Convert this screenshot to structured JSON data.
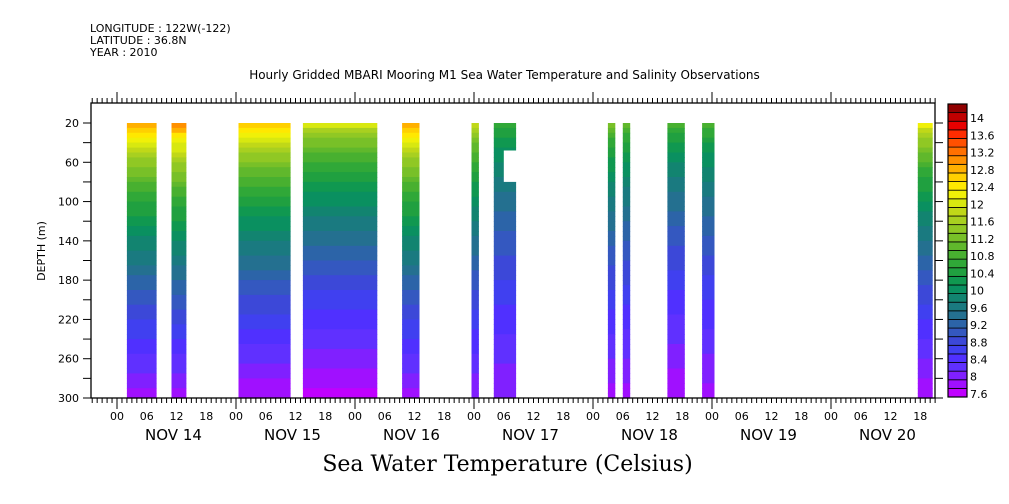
{
  "header": {
    "longitude": "LONGITUDE : 122W(-122)",
    "latitude": "LATITUDE : 36.8N",
    "year": "YEAR : 2010"
  },
  "chart_data": {
    "type": "heatmap",
    "title": "Hourly Gridded MBARI Mooring M1 Sea Water Temperature and Salinity Observations",
    "variable_title": "Sea Water Temperature (Celsius)",
    "ylabel": "DEPTH (m)",
    "xlabel": "",
    "ylim": [
      300,
      0
    ],
    "y_ticks_labeled": [
      20,
      60,
      100,
      140,
      180,
      220,
      260,
      300
    ],
    "y_ticks_minor": [
      40,
      80,
      120,
      160,
      200,
      240,
      280
    ],
    "x_range_hours": [
      -5.25,
      165.25
    ],
    "x_hour_labels": [
      "00",
      "06",
      "12",
      "18"
    ],
    "x_days": [
      {
        "label": "NOV 14",
        "start_hour": 0
      },
      {
        "label": "NOV 15",
        "start_hour": 24
      },
      {
        "label": "NOV 16",
        "start_hour": 48
      },
      {
        "label": "NOV 17",
        "start_hour": 72
      },
      {
        "label": "NOV 18",
        "start_hour": 96
      },
      {
        "label": "NOV 19",
        "start_hour": 120
      },
      {
        "label": "NOV 20",
        "start_hour": 144
      }
    ],
    "colorbar": {
      "min": 7.6,
      "max": 14.2,
      "step": 0.2,
      "labels": [
        "14",
        "13.6",
        "13.2",
        "12.8",
        "12.4",
        "12",
        "11.6",
        "11.2",
        "10.8",
        "10.4",
        "10",
        "9.6",
        "9.2",
        "8.8",
        "8.4",
        "8",
        "7.6"
      ],
      "colors": [
        "#c000ff",
        "#a010ff",
        "#8020ff",
        "#6030ff",
        "#5030ff",
        "#4040f0",
        "#3c48d8",
        "#3458c0",
        "#2c64a8",
        "#247090",
        "#1a7a80",
        "#128470",
        "#0a9060",
        "#109850",
        "#20a040",
        "#30a838",
        "#48b030",
        "#60b82c",
        "#78c028",
        "#90c824",
        "#a8d020",
        "#c0d818",
        "#d8e810",
        "#f0f008",
        "#ffe800",
        "#ffd000",
        "#ffb000",
        "#ff9000",
        "#ff7000",
        "#ff5000",
        "#ff2c00",
        "#e80000",
        "#c00000",
        "#900000"
      ]
    },
    "depth_range_observed": [
      20,
      300
    ],
    "series": [
      {
        "name": "NOV 14 02-08",
        "hours": [
          2,
          8
        ],
        "surface_temp": 13.4,
        "bottom_temp": 7.9
      },
      {
        "name": "NOV 14 11-14",
        "hours": [
          11,
          14
        ],
        "surface_temp": 13.6,
        "bottom_temp": 7.9
      },
      {
        "name": "NOV 15 00-11",
        "hours": [
          24.5,
          35
        ],
        "surface_temp": 13.2,
        "bottom_temp": 7.8
      },
      {
        "name": "NOV 15 13-NOV 16 04",
        "hours": [
          37.5,
          52.5
        ],
        "surface_temp": 12.4,
        "bottom_temp": 7.7
      },
      {
        "name": "NOV 16 09-13",
        "hours": [
          57.5,
          61
        ],
        "surface_temp": 13.4,
        "bottom_temp": 7.9
      },
      {
        "name": "NOV 16 23-NOV 17 01",
        "hours": [
          71.5,
          73
        ],
        "surface_temp": 12.2,
        "bottom_temp": 8.0
      },
      {
        "name": "NOV 17 04-08",
        "hours": [
          76,
          80.5
        ],
        "surface_temp": 11.0,
        "bottom_temp": 8.0,
        "gap_depth": [
          48,
          80
        ],
        "gap_hours": [
          78,
          80.5
        ]
      },
      {
        "name": "NOV 18 03-04",
        "hours": [
          99,
          100.5
        ],
        "surface_temp": 11.6,
        "bottom_temp": 7.9
      },
      {
        "name": "NOV 18 06-07",
        "hours": [
          102,
          103.5
        ],
        "surface_temp": 11.4,
        "bottom_temp": 7.9
      },
      {
        "name": "NOV 18 15-18",
        "hours": [
          111,
          114.5
        ],
        "surface_temp": 11.2,
        "bottom_temp": 7.8
      },
      {
        "name": "NOV 18 22-NOV 19 00",
        "hours": [
          118,
          120.5
        ],
        "surface_temp": 11.2,
        "bottom_temp": 7.9
      },
      {
        "name": "NOV 20 17-20",
        "hours": [
          161.5,
          164.5
        ],
        "surface_temp": 12.6,
        "bottom_temp": 7.8
      }
    ]
  }
}
